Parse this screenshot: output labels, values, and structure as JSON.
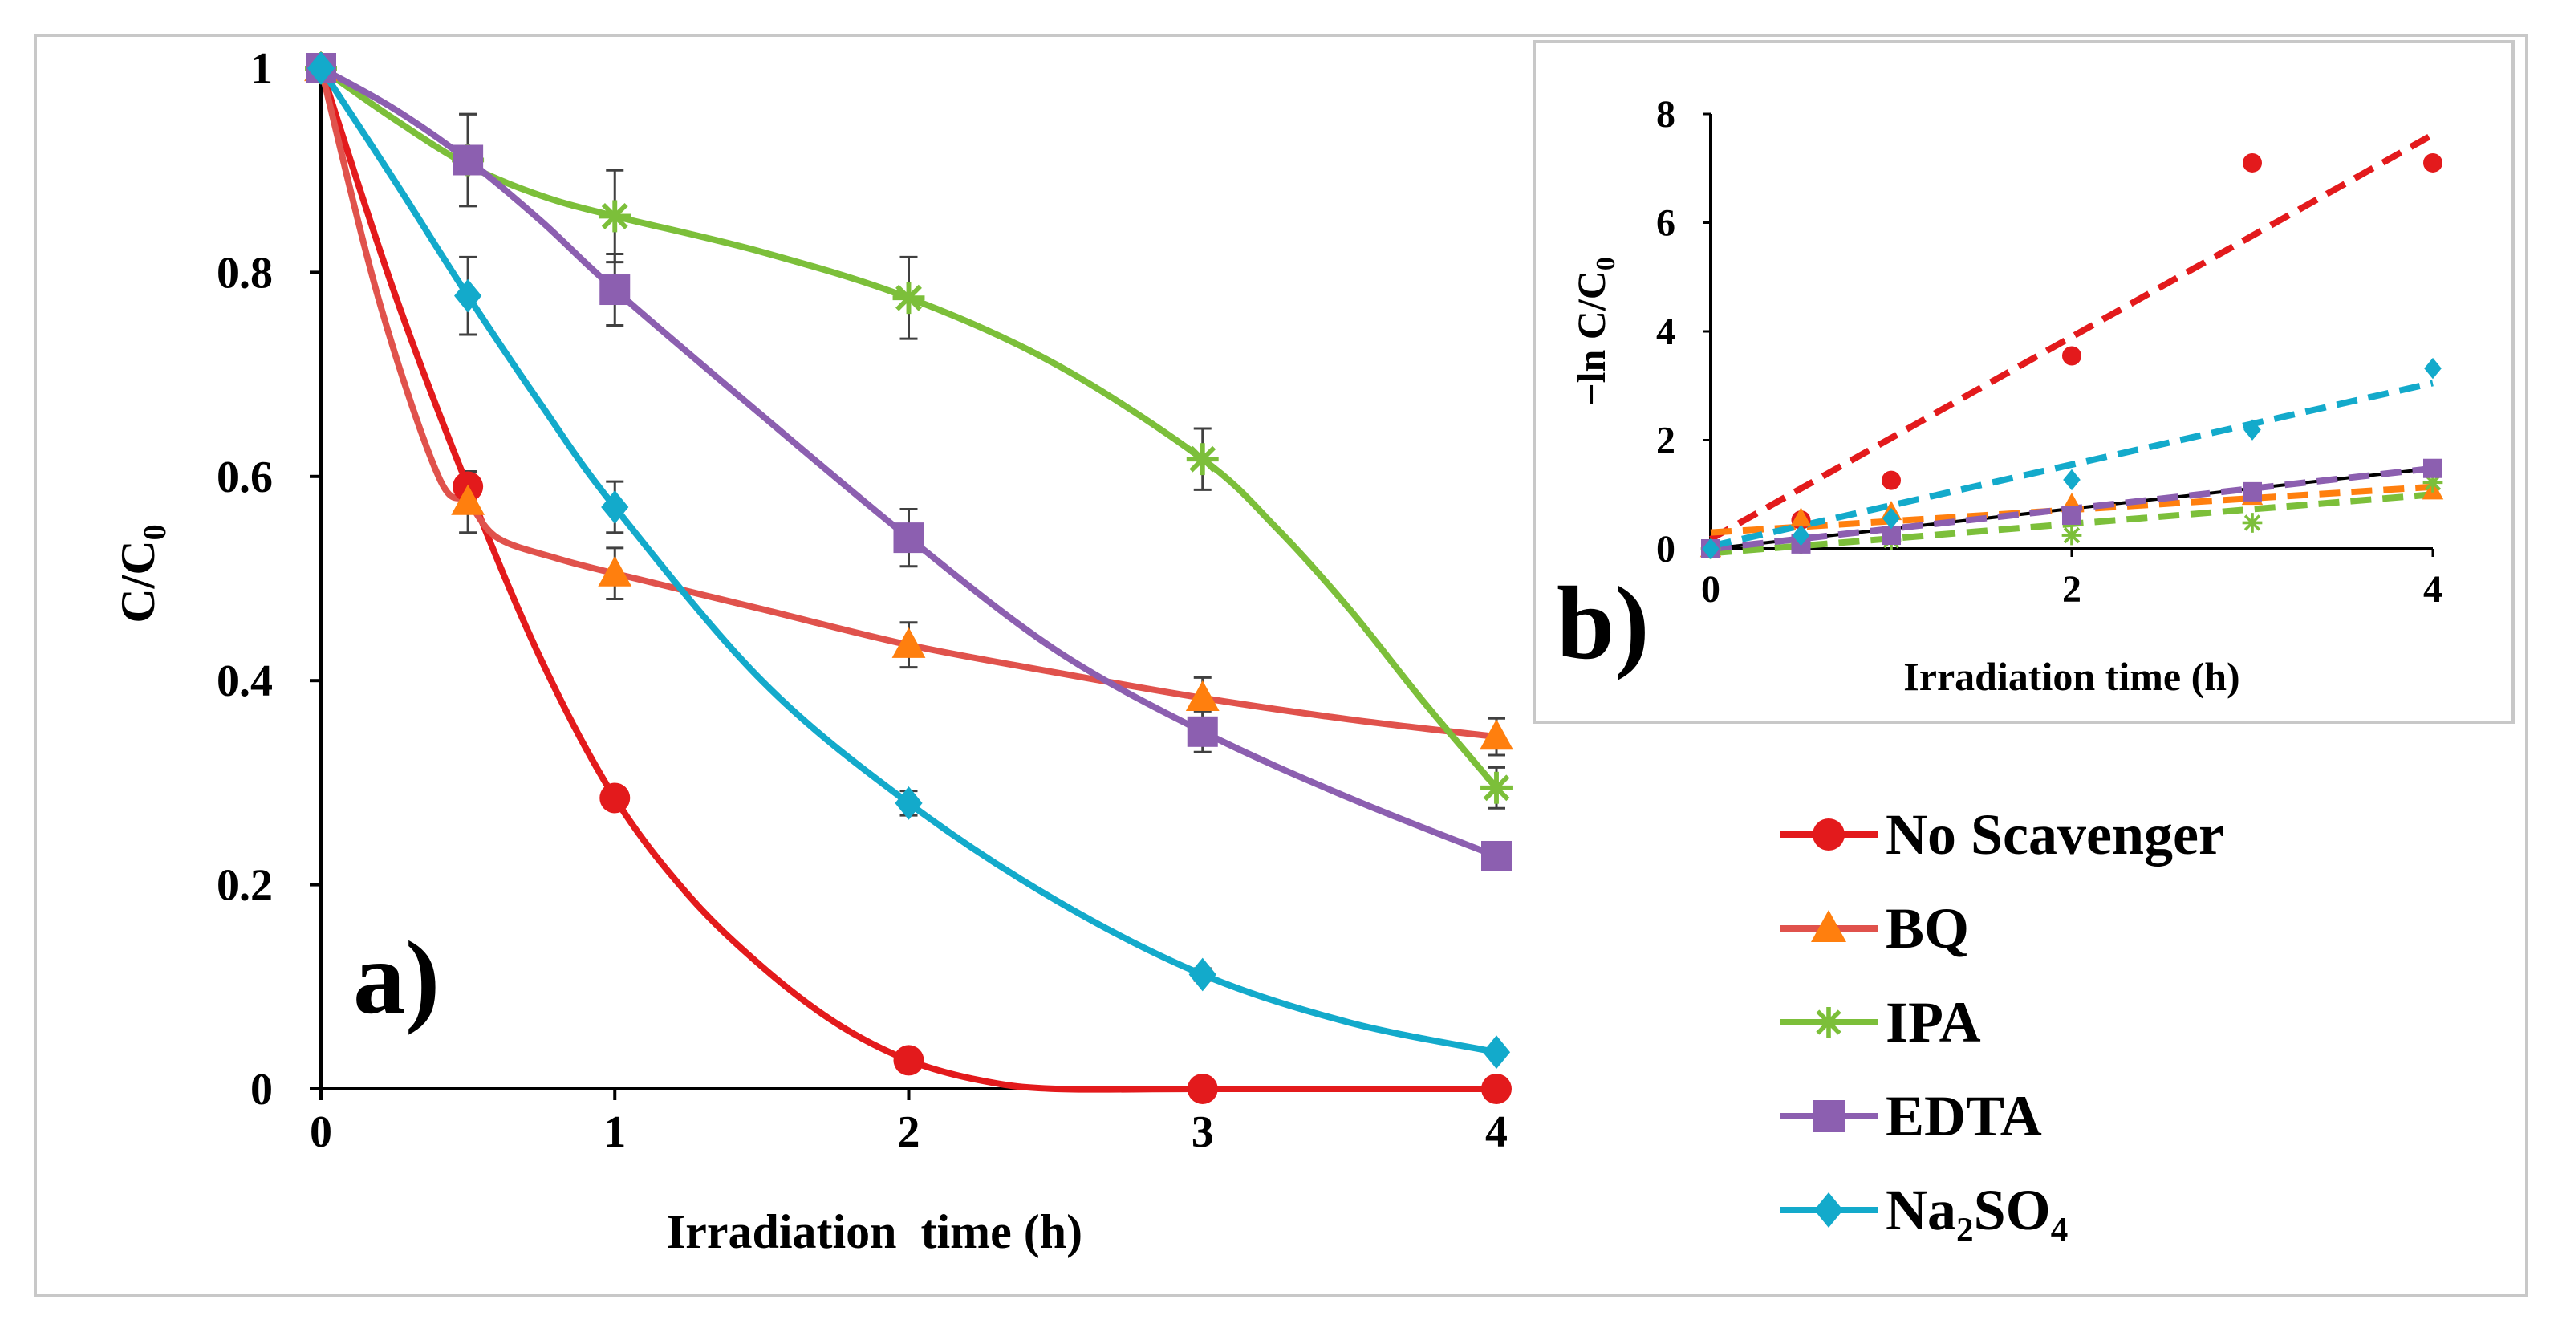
{
  "colors": {
    "no_scavenger": "#e31a1c",
    "bq_line": "#e0524c",
    "bq_marker": "#ff7f0e",
    "ipa": "#7cbf3a",
    "edta": "#8c5fb0",
    "na2so4": "#13aacb",
    "error_bar": "#404040",
    "axis": "#000000",
    "frame": "#c8c8c8"
  },
  "chart_data": [
    {
      "id": "a",
      "type": "line",
      "panel_label": "a)",
      "xlabel": "Irradiation  time (h)",
      "ylabel": "C/C",
      "ylabel_sub": "0",
      "xlim": [
        0,
        4
      ],
      "ylim": [
        0,
        1
      ],
      "xticks": [
        0,
        1,
        2,
        3,
        4
      ],
      "yticks": [
        0,
        0.2,
        0.4,
        0.6,
        0.8,
        1
      ],
      "ytick_labels": [
        "0",
        "0.2",
        "0.4",
        "0.6",
        "0.8",
        "1"
      ],
      "grid": false,
      "series": [
        {
          "key": "no_scavenger",
          "name": "No Scavenger",
          "marker": "circle",
          "x": [
            0,
            0.5,
            1,
            2,
            3,
            4
          ],
          "y": [
            1,
            0.59,
            0.285,
            0.028,
            0.0,
            0.0
          ],
          "smooth_curve": [
            [
              0,
              1
            ],
            [
              0.25,
              0.78
            ],
            [
              0.5,
              0.59
            ],
            [
              0.75,
              0.42
            ],
            [
              1,
              0.285
            ],
            [
              1.25,
              0.19
            ],
            [
              1.5,
              0.12
            ],
            [
              1.75,
              0.065
            ],
            [
              2,
              0.028
            ],
            [
              2.25,
              0.008
            ],
            [
              2.5,
              0.0
            ],
            [
              3,
              0.0
            ],
            [
              4,
              0.0
            ]
          ]
        },
        {
          "key": "bq",
          "name": "BQ",
          "marker": "triangle",
          "x": [
            0,
            0.5,
            1,
            2,
            3,
            4
          ],
          "y": [
            1,
            0.575,
            0.505,
            0.435,
            0.383,
            0.345
          ],
          "error": [
            0,
            0.03,
            0.025,
            0.022,
            0.02,
            0.018
          ],
          "smooth_curve": [
            [
              0,
              1
            ],
            [
              0.2,
              0.77
            ],
            [
              0.4,
              0.6
            ],
            [
              0.5,
              0.575
            ],
            [
              0.6,
              0.54
            ],
            [
              0.8,
              0.52
            ],
            [
              1,
              0.505
            ],
            [
              1.5,
              0.47
            ],
            [
              2,
              0.435
            ],
            [
              2.5,
              0.408
            ],
            [
              3,
              0.383
            ],
            [
              3.5,
              0.362
            ],
            [
              4,
              0.345
            ]
          ]
        },
        {
          "key": "ipa",
          "name": "IPA",
          "marker": "star",
          "x": [
            0,
            0.5,
            1,
            2,
            3,
            4
          ],
          "y": [
            1,
            0.91,
            0.855,
            0.775,
            0.617,
            0.295
          ],
          "error": [
            0,
            0.045,
            0.045,
            0.04,
            0.03,
            0.02
          ],
          "smooth_curve": [
            [
              0,
              1
            ],
            [
              0.25,
              0.95
            ],
            [
              0.5,
              0.905
            ],
            [
              0.75,
              0.875
            ],
            [
              1,
              0.855
            ],
            [
              1.5,
              0.82
            ],
            [
              2,
              0.775
            ],
            [
              2.5,
              0.71
            ],
            [
              3,
              0.617
            ],
            [
              3.25,
              0.55
            ],
            [
              3.5,
              0.47
            ],
            [
              3.75,
              0.38
            ],
            [
              4,
              0.295
            ]
          ]
        },
        {
          "key": "edta",
          "name": "EDTA",
          "marker": "square",
          "x": [
            0,
            0.5,
            1,
            2,
            3,
            4
          ],
          "y": [
            1,
            0.91,
            0.783,
            0.54,
            0.35,
            0.228
          ],
          "error": [
            0,
            0.045,
            0.035,
            0.028,
            0.02,
            0.012
          ],
          "smooth_curve": [
            [
              0,
              1
            ],
            [
              0.25,
              0.96
            ],
            [
              0.5,
              0.91
            ],
            [
              0.75,
              0.85
            ],
            [
              1,
              0.783
            ],
            [
              1.5,
              0.66
            ],
            [
              2,
              0.54
            ],
            [
              2.5,
              0.43
            ],
            [
              3,
              0.35
            ],
            [
              3.5,
              0.285
            ],
            [
              4,
              0.228
            ]
          ]
        },
        {
          "key": "na2so4",
          "name": "Na₂SO₄",
          "marker": "diamond",
          "x": [
            0,
            0.5,
            1,
            2,
            3,
            4
          ],
          "y": [
            1,
            0.777,
            0.57,
            0.28,
            0.112,
            0.036
          ],
          "error": [
            0,
            0.038,
            0.025,
            0.012,
            0.006,
            0.004
          ],
          "smooth_curve": [
            [
              0,
              1
            ],
            [
              0.25,
              0.89
            ],
            [
              0.5,
              0.777
            ],
            [
              0.75,
              0.67
            ],
            [
              1,
              0.57
            ],
            [
              1.5,
              0.4
            ],
            [
              2,
              0.28
            ],
            [
              2.5,
              0.185
            ],
            [
              3,
              0.112
            ],
            [
              3.5,
              0.065
            ],
            [
              4,
              0.036
            ]
          ]
        }
      ]
    },
    {
      "id": "b",
      "type": "scatter",
      "panel_label": "b)",
      "xlabel": "Irradiation time (h)",
      "ylabel": "−ln C/C",
      "ylabel_sub": "0",
      "xlim": [
        0,
        4
      ],
      "ylim": [
        0,
        8
      ],
      "xticks": [
        0,
        2,
        4
      ],
      "yticks": [
        0,
        2,
        4,
        6,
        8
      ],
      "grid": false,
      "series": [
        {
          "key": "no_scavenger",
          "name": "No Scavenger",
          "marker": "circle",
          "x": [
            0,
            0.5,
            1,
            2,
            3,
            4
          ],
          "y": [
            0,
            0.53,
            1.26,
            3.55,
            7.1,
            7.1
          ],
          "fit": {
            "slope": 1.86,
            "intercept": 0.18
          }
        },
        {
          "key": "bq",
          "name": "BQ",
          "marker": "triangle",
          "x": [
            0,
            0.5,
            1,
            2,
            3,
            4
          ],
          "y": [
            0,
            0.56,
            0.68,
            0.83,
            0.96,
            1.06
          ],
          "fit": {
            "slope": 0.21,
            "intercept": 0.3
          }
        },
        {
          "key": "ipa",
          "name": "IPA",
          "marker": "star",
          "x": [
            0,
            0.5,
            1,
            2,
            3,
            4
          ],
          "y": [
            0,
            0.09,
            0.16,
            0.25,
            0.48,
            1.22
          ],
          "fit": {
            "slope": 0.27,
            "intercept": -0.08
          }
        },
        {
          "key": "edta",
          "name": "EDTA",
          "marker": "square",
          "x": [
            0,
            0.5,
            1,
            2,
            3,
            4
          ],
          "y": [
            0,
            0.09,
            0.25,
            0.62,
            1.05,
            1.48
          ],
          "fit": {
            "slope": 0.37,
            "intercept": 0.0
          }
        },
        {
          "key": "na2so4",
          "name": "Na₂SO₄",
          "marker": "diamond",
          "x": [
            0,
            0.5,
            1,
            2,
            3,
            4
          ],
          "y": [
            0,
            0.25,
            0.56,
            1.27,
            2.19,
            3.32
          ],
          "fit": {
            "slope": 0.75,
            "intercept": 0.05
          }
        }
      ]
    }
  ]
}
